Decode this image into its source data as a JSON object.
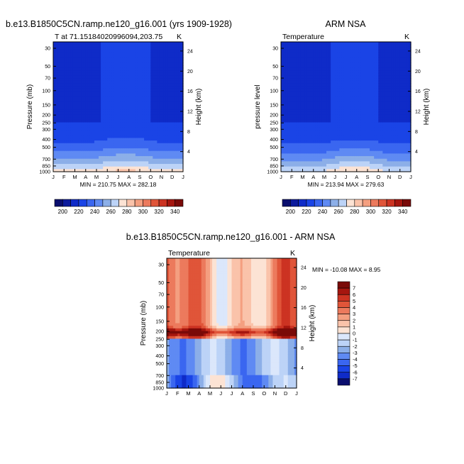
{
  "figure": {
    "title_left": "b.e13.B1850C5CN.ramp.ne120_g16.001 (yrs 1909-1928)",
    "title_right": "ARM NSA",
    "title_bottom": "b.e13.B1850C5CN.ramp.ne120_g16.001 - ARM NSA"
  },
  "chart_data": [
    {
      "id": "model",
      "type": "heatmap",
      "subtitle": "T at 71.15184020996094,203.75",
      "units": "K",
      "ylabel": "Pressure (mb)",
      "ylabel_right": "Height (km)",
      "months": [
        "J",
        "F",
        "M",
        "A",
        "M",
        "J",
        "J",
        "A",
        "S",
        "O",
        "N",
        "D",
        "J"
      ],
      "pressure_ticks": [
        "30",
        "50",
        "70",
        "100",
        "150",
        "200",
        "250",
        "300",
        "400",
        "500",
        "700",
        "850",
        "1000"
      ],
      "pressure_values": [
        30,
        50,
        70,
        100,
        150,
        200,
        250,
        300,
        400,
        500,
        700,
        850,
        1000
      ],
      "height_ticks": [
        "24",
        "20",
        "16",
        "12",
        "8",
        "4"
      ],
      "height_values": [
        24,
        20,
        16,
        12,
        8,
        4
      ],
      "stats": "MIN = 210.75 MAX = 282.18",
      "color_levels": [
        200,
        210,
        220,
        230,
        240,
        250,
        260,
        270,
        280,
        290,
        300,
        310,
        320,
        330,
        340
      ],
      "ylim_mb": [
        1000,
        25
      ]
    },
    {
      "id": "obs",
      "type": "heatmap",
      "subtitle": "Temperature",
      "units": "K",
      "ylabel": "pressure level",
      "ylabel_right": "Height (km)",
      "months": [
        "J",
        "F",
        "M",
        "A",
        "M",
        "J",
        "J",
        "A",
        "S",
        "O",
        "N",
        "D",
        "J"
      ],
      "pressure_ticks": [
        "30",
        "50",
        "70",
        "100",
        "150",
        "200",
        "250",
        "300",
        "400",
        "500",
        "700",
        "850",
        "1000"
      ],
      "pressure_values": [
        30,
        50,
        70,
        100,
        150,
        200,
        250,
        300,
        400,
        500,
        700,
        850,
        1000
      ],
      "height_ticks": [
        "24",
        "20",
        "16",
        "12",
        "8",
        "4"
      ],
      "height_values": [
        24,
        20,
        16,
        12,
        8,
        4
      ],
      "stats": "MIN = 213.94 MAX = 279.63",
      "color_levels": [
        200,
        210,
        220,
        230,
        240,
        250,
        260,
        270,
        280,
        290,
        300,
        310,
        320,
        330,
        340
      ],
      "ylim_mb": [
        1000,
        25
      ]
    },
    {
      "id": "diff",
      "type": "heatmap",
      "subtitle": "Temperature",
      "units": "K",
      "ylabel": "Pressure (mb)",
      "ylabel_right": "Height (km)",
      "months": [
        "J",
        "F",
        "M",
        "A",
        "M",
        "J",
        "J",
        "A",
        "S",
        "O",
        "N",
        "D",
        "J"
      ],
      "pressure_ticks": [
        "30",
        "50",
        "70",
        "100",
        "150",
        "200",
        "250",
        "300",
        "400",
        "500",
        "700",
        "850",
        "1000"
      ],
      "pressure_values": [
        30,
        50,
        70,
        100,
        150,
        200,
        250,
        300,
        400,
        500,
        700,
        850,
        1000
      ],
      "height_ticks": [
        "24",
        "20",
        "16",
        "12",
        "8",
        "4"
      ],
      "height_values": [
        24,
        20,
        16,
        12,
        8,
        4
      ],
      "stats": "MIN = -10.08 MAX =   8.95",
      "color_levels": [
        -7,
        -6,
        -5,
        -4,
        -3,
        -2,
        -1,
        0,
        1,
        2,
        3,
        4,
        5,
        6,
        7
      ],
      "ylim_mb": [
        1000,
        25
      ]
    }
  ],
  "colorbars": {
    "absolute": {
      "labels": [
        "200",
        "220",
        "240",
        "260",
        "280",
        "300",
        "320",
        "340"
      ],
      "colors": [
        "#0a0e6e",
        "#0c1a9c",
        "#0f2bc8",
        "#1a44e6",
        "#3a66f0",
        "#5f8af3",
        "#8cafe8",
        "#bcd3f7",
        "#fce3d4",
        "#fac3aa",
        "#f49f80",
        "#ec7a5d",
        "#e05539",
        "#cc3322",
        "#a5160f",
        "#7a0a08"
      ]
    },
    "anomaly": {
      "labels": [
        "7",
        "6",
        "5",
        "4",
        "3",
        "2",
        "1",
        "0",
        "-1",
        "-2",
        "-3",
        "-4",
        "-5",
        "-6",
        "-7"
      ],
      "colors": [
        "#7a0a08",
        "#a5160f",
        "#cc3322",
        "#e05539",
        "#ec7a5d",
        "#f49f80",
        "#fac3aa",
        "#fce3d4",
        "#dbe7fb",
        "#bcd3f7",
        "#8cafe8",
        "#5f8af3",
        "#3a66f0",
        "#1a44e6",
        "#0f2bc8",
        "#0a0e6e"
      ]
    }
  }
}
